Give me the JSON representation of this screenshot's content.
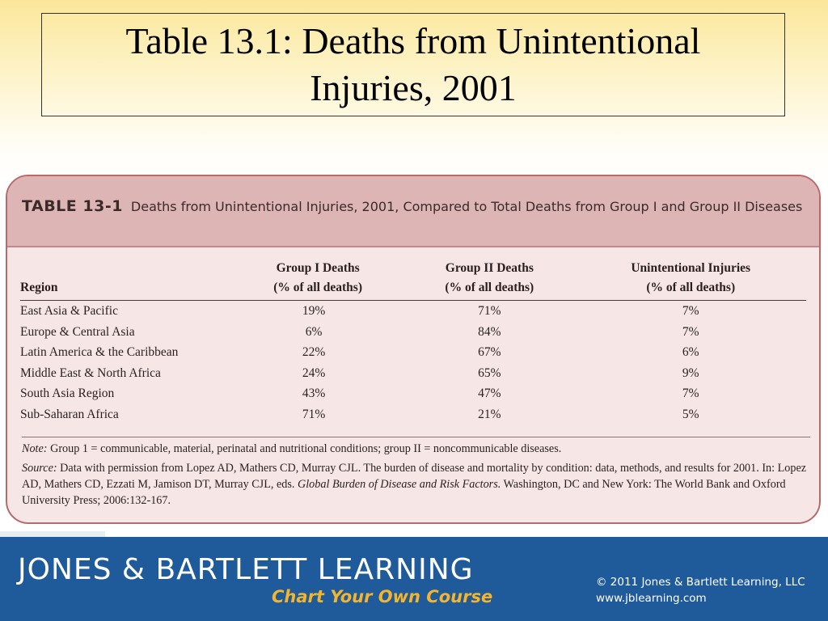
{
  "slide": {
    "title_line1": "Table 13.1: Deaths from Unintentional",
    "title_line2": "Injuries, 2001"
  },
  "table": {
    "label": "TABLE 13-1",
    "caption": "Deaths from Unintentional Injuries, 2001, Compared to Total Deaths from Group I and Group II Diseases",
    "columns": [
      {
        "line1": "",
        "line2": "Region"
      },
      {
        "line1": "Group I Deaths",
        "line2": "(% of all deaths)"
      },
      {
        "line1": "Group II Deaths",
        "line2": "(% of all deaths)"
      },
      {
        "line1": "Unintentional Injuries",
        "line2": "(% of all deaths)"
      }
    ],
    "rows": [
      [
        "East Asia & Pacific",
        "19%",
        "71%",
        "7%"
      ],
      [
        "Europe & Central Asia",
        "6%",
        "84%",
        "7%"
      ],
      [
        "Latin America & the Caribbean",
        "22%",
        "67%",
        "6%"
      ],
      [
        "Middle East & North Africa",
        "24%",
        "65%",
        "9%"
      ],
      [
        "South Asia Region",
        "43%",
        "47%",
        "7%"
      ],
      [
        "Sub-Saharan Africa",
        "71%",
        "21%",
        "5%"
      ]
    ]
  },
  "notes": {
    "note_label": "Note:",
    "note_text": " Group 1 = communicable, material, perinatal and nutritional conditions; group II = noncommunicable diseases.",
    "source_label": "Source:",
    "source_text1": " Data with permission from Lopez AD, Mathers CD, Murray CJL. The burden of disease and mortality by condition: data, methods, and results for 2001. In: Lopez AD, Mathers CD, Ezzati M, Jamison DT, Murray CJL, eds. ",
    "source_title": "Global Burden of Disease and Risk Factors.",
    "source_text2": " Washington, DC and New York: The World Bank and Oxford University Press; 2006:132-167."
  },
  "footer": {
    "brand": "JONES & BARTLETT LEARNING",
    "tagline": "Chart Your Own Course",
    "copyright": "© 2011 Jones & Bartlett Learning, LLC",
    "website": "www.jblearning.com"
  }
}
